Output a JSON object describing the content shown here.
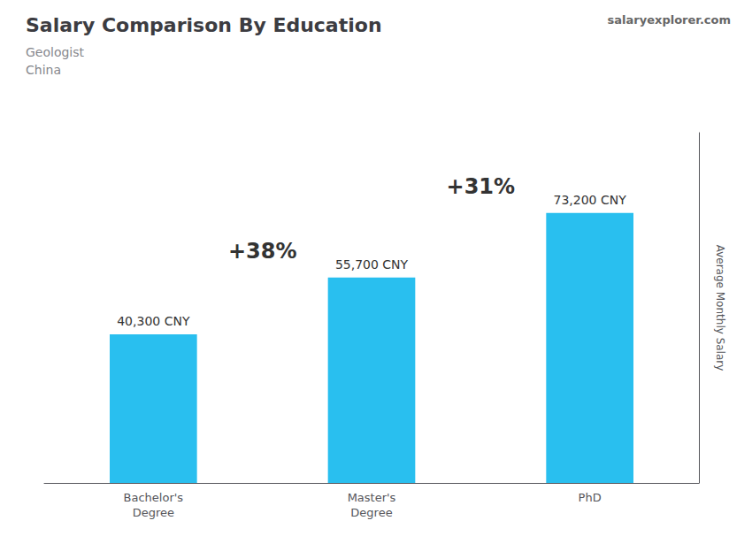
{
  "chart_data": {
    "type": "bar",
    "title": "Salary Comparison By Education",
    "subtitle": "Geologist\nChina",
    "categories": [
      "Bachelor's\nDegree",
      "Master's\nDegree",
      "PhD"
    ],
    "values": [
      40300,
      55700,
      73200
    ],
    "value_labels": [
      "40,300 CNY",
      "55,700 CNY",
      "73,200 CNY"
    ],
    "data_labels": true,
    "color": "#29BFEF",
    "ylabel": "Average Monthly Salary",
    "ylim": [
      0,
      95000
    ],
    "tick_labels": "x",
    "grid": false,
    "annotations": [
      "+38%",
      "+31%",
      "salaryexplorer.com"
    ]
  }
}
